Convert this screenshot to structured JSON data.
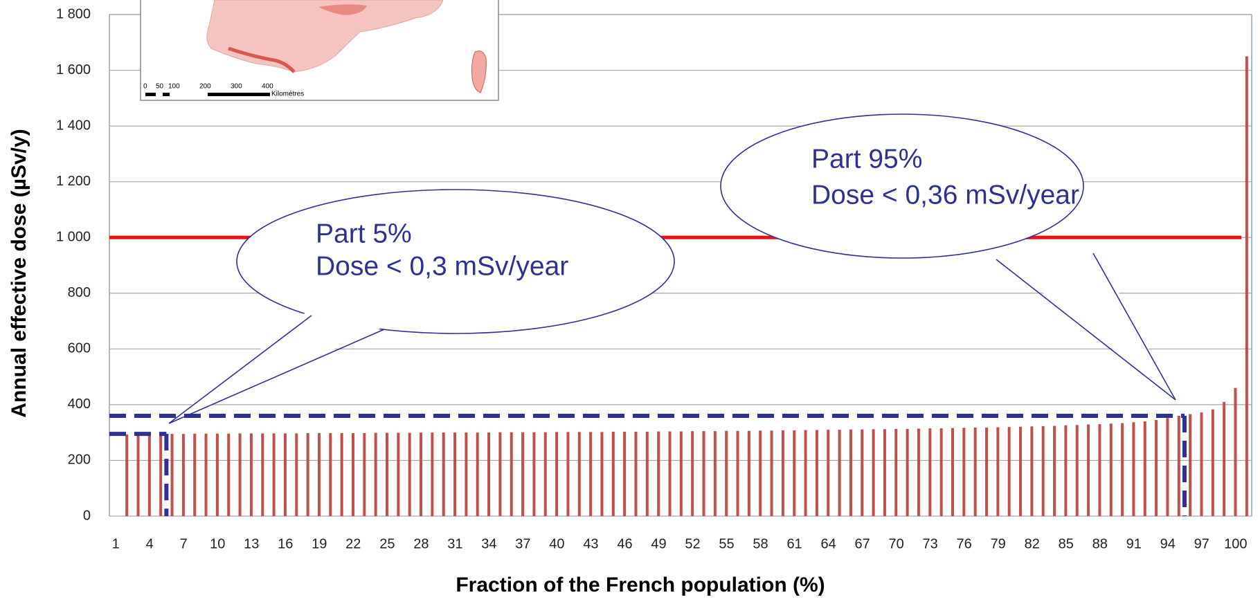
{
  "chart_data": {
    "type": "bar",
    "x_label": "Fraction of the French population (%)",
    "y_label": "Annual effective dose (µSv/y)",
    "categories": [
      1,
      null,
      null,
      4,
      null,
      null,
      7,
      null,
      null,
      10,
      null,
      null,
      13,
      null,
      null,
      16,
      null,
      null,
      19,
      null,
      null,
      22,
      null,
      null,
      25,
      null,
      null,
      28,
      null,
      null,
      31,
      null,
      null,
      34,
      null,
      null,
      37,
      null,
      null,
      40,
      null,
      null,
      43,
      null,
      null,
      46,
      null,
      null,
      49,
      null,
      null,
      52,
      null,
      null,
      55,
      null,
      null,
      58,
      null,
      null,
      61,
      null,
      null,
      64,
      null,
      null,
      67,
      null,
      null,
      70,
      null,
      null,
      73,
      null,
      null,
      76,
      null,
      null,
      79,
      null,
      null,
      82,
      null,
      null,
      85,
      null,
      null,
      88,
      null,
      null,
      91,
      null,
      null,
      94,
      null,
      null,
      97,
      null,
      null,
      100
    ],
    "values": [
      293,
      294,
      294,
      295,
      295,
      295,
      296,
      296,
      296,
      296,
      297,
      297,
      297,
      297,
      297,
      297,
      298,
      298,
      298,
      298,
      298,
      298,
      299,
      299,
      299,
      299,
      300,
      300,
      300,
      300,
      300,
      300,
      300,
      301,
      301,
      301,
      301,
      301,
      302,
      302,
      302,
      302,
      302,
      303,
      303,
      303,
      303,
      304,
      304,
      304,
      305,
      305,
      305,
      306,
      306,
      306,
      307,
      307,
      308,
      308,
      309,
      309,
      310,
      310,
      311,
      311,
      312,
      312,
      313,
      313,
      314,
      315,
      315,
      316,
      317,
      318,
      318,
      319,
      320,
      321,
      322,
      323,
      324,
      326,
      327,
      329,
      330,
      332,
      334,
      337,
      340,
      345,
      352,
      360,
      366,
      372,
      383,
      410,
      460,
      1650
    ],
    "color": "#c0504d",
    "ylim": [
      0,
      1800
    ],
    "yticks": [
      0,
      200,
      400,
      600,
      800,
      {
        "value": 1000,
        "label": "1 000"
      },
      {
        "value": 1200,
        "label": "1 200"
      },
      {
        "value": 1400,
        "label": "1 400"
      },
      {
        "value": 1600,
        "label": "1 600"
      },
      {
        "value": 1800,
        "label": "1 800"
      }
    ],
    "grid": true,
    "reference_line": {
      "value": 1000,
      "color": "#ee1111"
    },
    "thresholds": [
      {
        "x": 5,
        "y": 295,
        "color": "#2e3192"
      },
      {
        "x": 95,
        "y": 360,
        "color": "#2e3192"
      }
    ],
    "callouts": [
      {
        "lines": [
          "Part 5%",
          "Dose < 0,3 mSv/year"
        ]
      },
      {
        "lines": [
          "Part 95%",
          "Dose < 0,36 mSv/year"
        ]
      }
    ],
    "map_inset": {
      "scale_labels": [
        "0",
        "50",
        "100",
        "200",
        "300",
        "400",
        "Kilomètres"
      ]
    }
  }
}
